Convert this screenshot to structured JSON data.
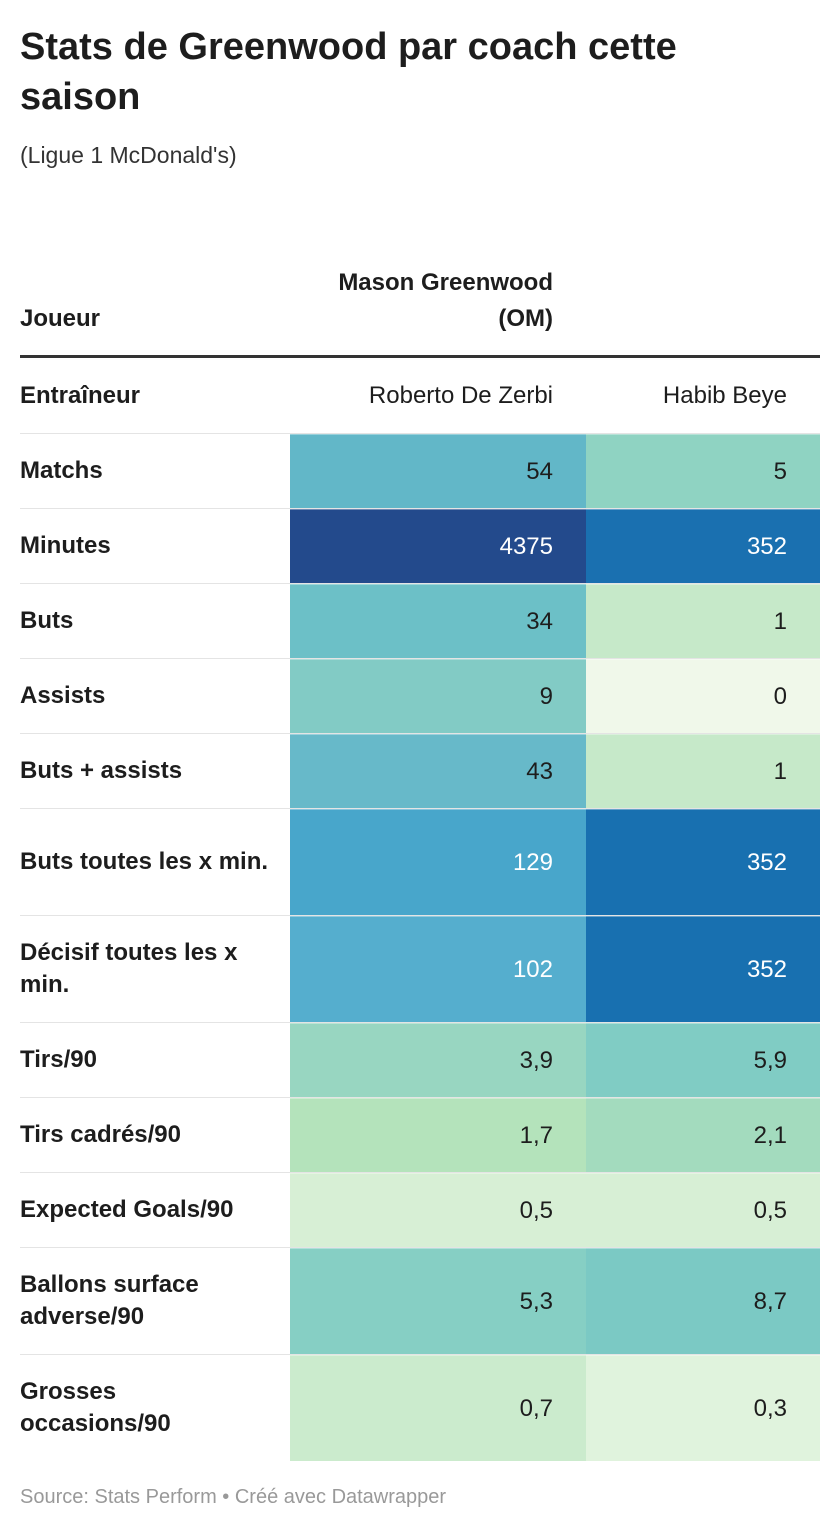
{
  "header": {
    "title": "Stats de Greenwood par coach cette saison",
    "subtitle": "(Ligue 1 McDonald's)"
  },
  "table": {
    "head": [
      "Joueur",
      "Mason Greenwood (OM)"
    ],
    "coach_row": {
      "label": "Entraîneur",
      "cells": [
        "Roberto De Zerbi",
        "Habib Beye"
      ]
    },
    "rows": [
      {
        "label": "Matchs",
        "cells": [
          {
            "text": "54",
            "color": "#62b7c8"
          },
          {
            "text": "5",
            "color": "#8fd3c2"
          }
        ]
      },
      {
        "label": "Minutes",
        "cells": [
          {
            "text": "4375",
            "color": "#234a8c"
          },
          {
            "text": "352",
            "color": "#1a70b0"
          }
        ]
      },
      {
        "label": "Buts",
        "cells": [
          {
            "text": "34",
            "color": "#6cc0c7"
          },
          {
            "text": "1",
            "color": "#c6e9c9"
          }
        ]
      },
      {
        "label": "Assists",
        "cells": [
          {
            "text": "9",
            "color": "#82cbc5"
          },
          {
            "text": "0",
            "color": "#f0f8ea"
          }
        ]
      },
      {
        "label": "Buts + assists",
        "cells": [
          {
            "text": "43",
            "color": "#67b9c9"
          },
          {
            "text": "1",
            "color": "#c6e9c9"
          }
        ]
      },
      {
        "label": "Buts toutes les x min.",
        "cells": [
          {
            "text": "129",
            "color": "#48a6cb"
          },
          {
            "text": "352",
            "color": "#1870b0"
          }
        ]
      },
      {
        "label": "Décisif toutes les x min.",
        "cells": [
          {
            "text": "102",
            "color": "#55aece"
          },
          {
            "text": "352",
            "color": "#1870b0"
          }
        ]
      },
      {
        "label": "Tirs/90",
        "cells": [
          {
            "text": "3,9",
            "color": "#98d6c1"
          },
          {
            "text": "5,9",
            "color": "#80ccc4"
          }
        ]
      },
      {
        "label": "Tirs cadrés/90",
        "cells": [
          {
            "text": "1,7",
            "color": "#b4e3bb"
          },
          {
            "text": "2,1",
            "color": "#a3dbbe"
          }
        ]
      },
      {
        "label": "Expected Goals/90",
        "cells": [
          {
            "text": "0,5",
            "color": "#d7efd5"
          },
          {
            "text": "0,5",
            "color": "#d7efd5"
          }
        ]
      },
      {
        "label": "Ballons surface adverse/90",
        "cells": [
          {
            "text": "5,3",
            "color": "#86cfc4"
          },
          {
            "text": "8,7",
            "color": "#7bc9c4"
          }
        ]
      },
      {
        "label": "Grosses occasions/90",
        "cells": [
          {
            "text": "0,7",
            "color": "#cbebcd"
          },
          {
            "text": "0,3",
            "color": "#e0f3dd"
          }
        ]
      }
    ]
  },
  "footer": "Source: Stats Perform • Créé avec Datawrapper"
}
